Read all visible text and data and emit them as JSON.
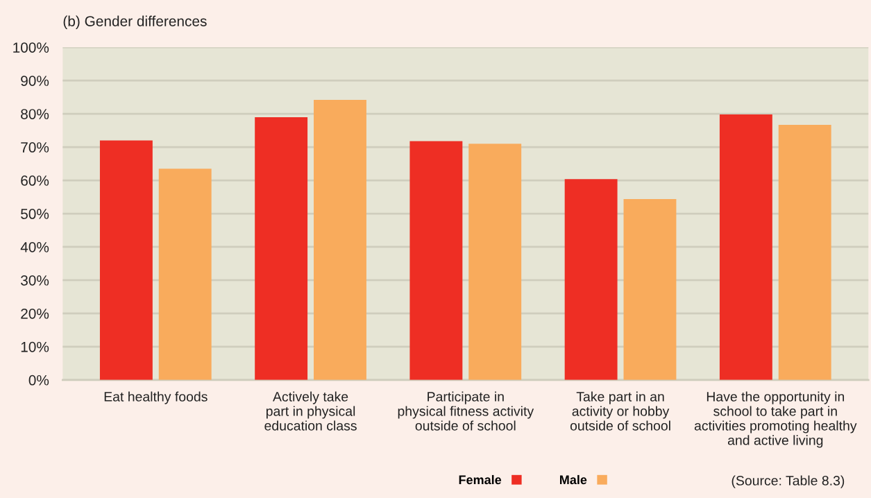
{
  "chart_data": {
    "type": "bar",
    "title": "(b) Gender differences",
    "categories": [
      "Eat healthy foods",
      "Actively take\npart in physical\neducation class",
      "Participate in\nphysical fitness activity\noutside of school",
      "Take part in an\nactivity or hobby\noutside of school",
      "Have the opportunity in\nschool to take part in\nactivities promoting healthy\nand active living"
    ],
    "series": [
      {
        "name": "Female",
        "color": "#ee2e24",
        "values": [
          72,
          79,
          71.8,
          60.4,
          79.8
        ]
      },
      {
        "name": "Male",
        "color": "#f9ab5c",
        "values": [
          63.5,
          84.2,
          71,
          54.4,
          76.7
        ]
      }
    ],
    "ylim": [
      0,
      100
    ],
    "yticks": [
      {
        "value": 0,
        "label": "0%"
      },
      {
        "value": 10,
        "label": "10%"
      },
      {
        "value": 20,
        "label": "20%"
      },
      {
        "value": 30,
        "label": "30%"
      },
      {
        "value": 40,
        "label": "40%"
      },
      {
        "value": 50,
        "label": "50%"
      },
      {
        "value": 60,
        "label": "60%"
      },
      {
        "value": 70,
        "label": "70%"
      },
      {
        "value": 80,
        "label": "80%"
      },
      {
        "value": 90,
        "label": "90%"
      },
      {
        "value": 100,
        "label": "100%"
      }
    ],
    "grid": "y",
    "legend": "bottom right",
    "annotations": [
      "(Source: Table 8.3)"
    ]
  }
}
